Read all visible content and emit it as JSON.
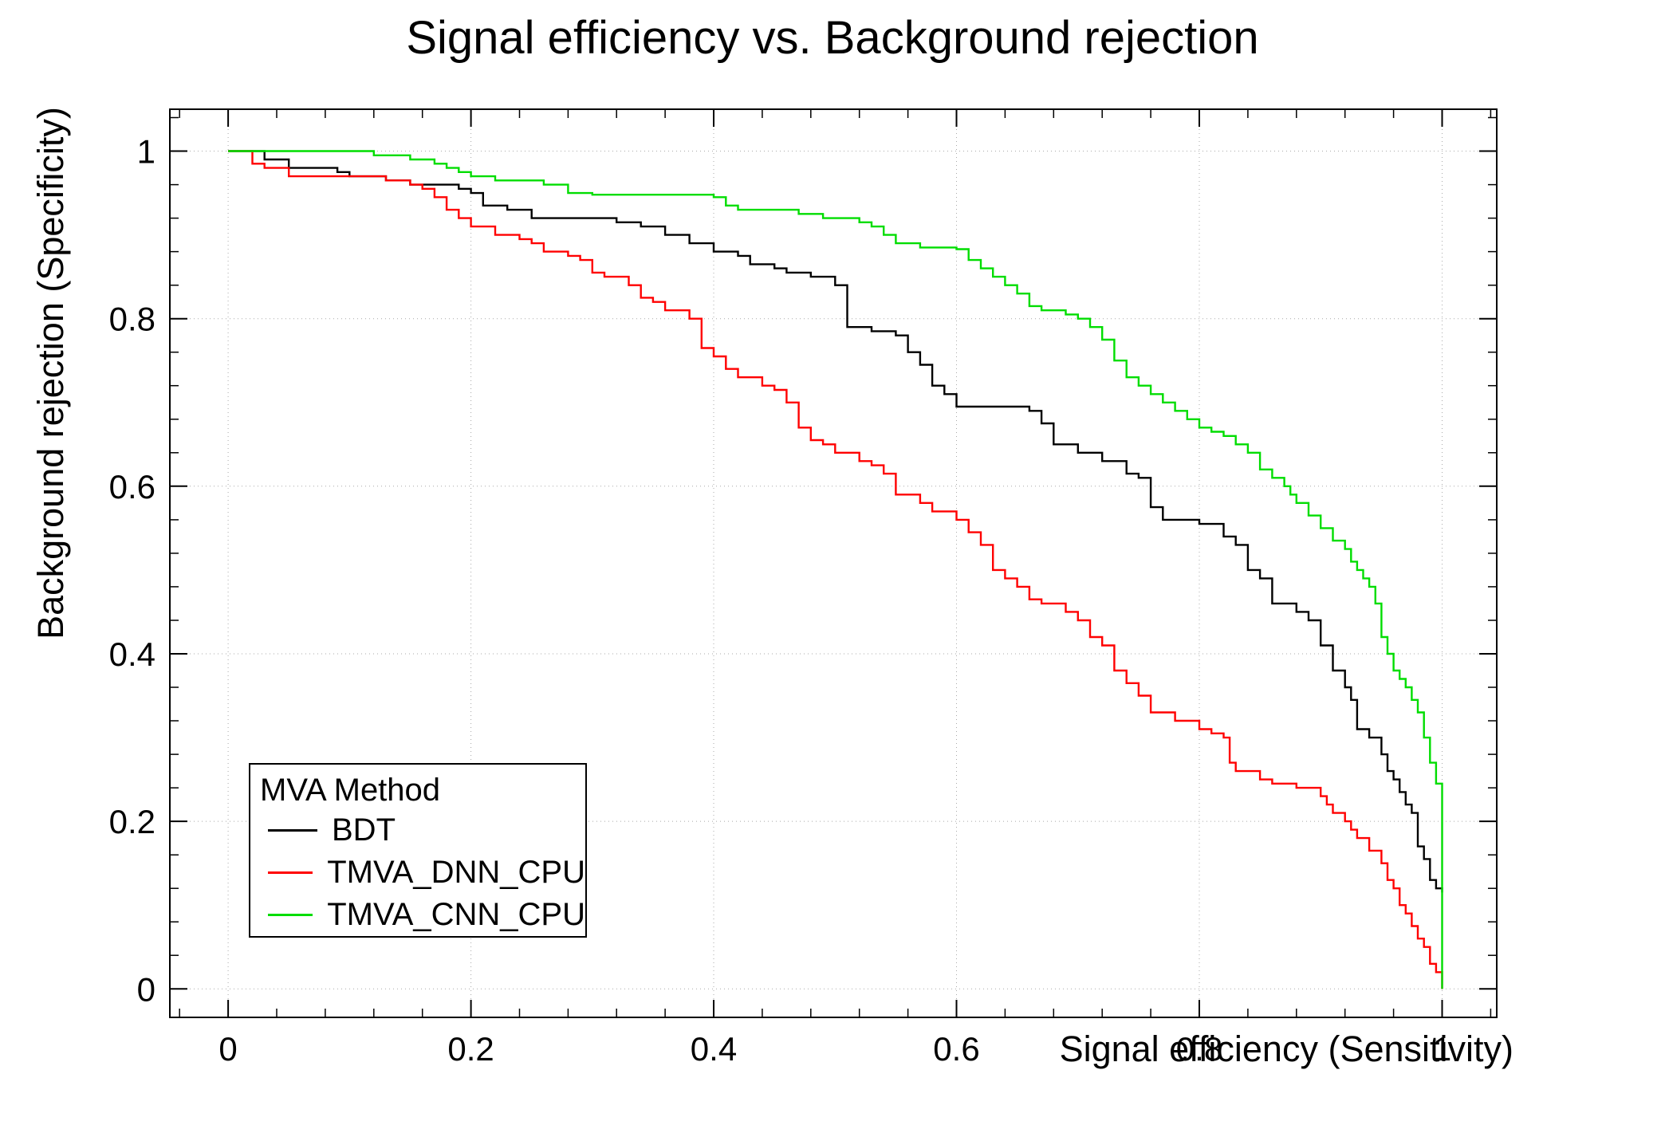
{
  "chart_data": {
    "type": "line",
    "title": "Signal efficiency vs. Background rejection",
    "xlabel": "Signal efficiency (Sensitivity)",
    "ylabel": "Background rejection (Specificity)",
    "xlim": [
      -0.048,
      1.045
    ],
    "ylim": [
      -0.034,
      1.05
    ],
    "xticks": [
      0,
      0.2,
      0.4,
      0.6,
      0.8,
      1
    ],
    "yticks": [
      0,
      0.2,
      0.4,
      0.6,
      0.8,
      1
    ],
    "minor_tick_step": 0.04,
    "grid": true,
    "legend": {
      "title": "MVA Method",
      "position": "bottom-left"
    },
    "series": [
      {
        "name": "BDT",
        "color": "#000000",
        "points": [
          [
            0,
            1
          ],
          [
            0.02,
            1
          ],
          [
            0.03,
            0.99
          ],
          [
            0.05,
            0.98
          ],
          [
            0.09,
            0.975
          ],
          [
            0.1,
            0.97
          ],
          [
            0.13,
            0.965
          ],
          [
            0.15,
            0.96
          ],
          [
            0.19,
            0.955
          ],
          [
            0.2,
            0.95
          ],
          [
            0.21,
            0.935
          ],
          [
            0.23,
            0.93
          ],
          [
            0.25,
            0.92
          ],
          [
            0.3,
            0.92
          ],
          [
            0.32,
            0.915
          ],
          [
            0.34,
            0.91
          ],
          [
            0.36,
            0.9
          ],
          [
            0.38,
            0.89
          ],
          [
            0.4,
            0.88
          ],
          [
            0.42,
            0.875
          ],
          [
            0.43,
            0.865
          ],
          [
            0.45,
            0.86
          ],
          [
            0.46,
            0.855
          ],
          [
            0.48,
            0.85
          ],
          [
            0.5,
            0.84
          ],
          [
            0.51,
            0.79
          ],
          [
            0.53,
            0.785
          ],
          [
            0.55,
            0.78
          ],
          [
            0.56,
            0.76
          ],
          [
            0.57,
            0.745
          ],
          [
            0.58,
            0.72
          ],
          [
            0.59,
            0.71
          ],
          [
            0.6,
            0.695
          ],
          [
            0.64,
            0.695
          ],
          [
            0.66,
            0.69
          ],
          [
            0.67,
            0.675
          ],
          [
            0.68,
            0.65
          ],
          [
            0.7,
            0.64
          ],
          [
            0.72,
            0.63
          ],
          [
            0.74,
            0.615
          ],
          [
            0.75,
            0.61
          ],
          [
            0.76,
            0.575
          ],
          [
            0.77,
            0.56
          ],
          [
            0.8,
            0.555
          ],
          [
            0.82,
            0.54
          ],
          [
            0.83,
            0.53
          ],
          [
            0.84,
            0.5
          ],
          [
            0.85,
            0.49
          ],
          [
            0.86,
            0.46
          ],
          [
            0.88,
            0.45
          ],
          [
            0.89,
            0.44
          ],
          [
            0.9,
            0.41
          ],
          [
            0.91,
            0.38
          ],
          [
            0.92,
            0.36
          ],
          [
            0.925,
            0.345
          ],
          [
            0.93,
            0.31
          ],
          [
            0.94,
            0.3
          ],
          [
            0.95,
            0.28
          ],
          [
            0.955,
            0.26
          ],
          [
            0.96,
            0.25
          ],
          [
            0.965,
            0.235
          ],
          [
            0.97,
            0.22
          ],
          [
            0.975,
            0.21
          ],
          [
            0.98,
            0.17
          ],
          [
            0.985,
            0.155
          ],
          [
            0.99,
            0.13
          ],
          [
            0.995,
            0.12
          ],
          [
            1,
            0.115
          ]
        ]
      },
      {
        "name": "TMVA_DNN_CPU",
        "color": "#ff0000",
        "points": [
          [
            0,
            1
          ],
          [
            0.01,
            1
          ],
          [
            0.02,
            0.985
          ],
          [
            0.03,
            0.98
          ],
          [
            0.05,
            0.97
          ],
          [
            0.13,
            0.965
          ],
          [
            0.15,
            0.96
          ],
          [
            0.16,
            0.955
          ],
          [
            0.17,
            0.945
          ],
          [
            0.18,
            0.93
          ],
          [
            0.19,
            0.92
          ],
          [
            0.2,
            0.91
          ],
          [
            0.22,
            0.9
          ],
          [
            0.24,
            0.895
          ],
          [
            0.25,
            0.89
          ],
          [
            0.26,
            0.88
          ],
          [
            0.28,
            0.875
          ],
          [
            0.29,
            0.87
          ],
          [
            0.3,
            0.855
          ],
          [
            0.31,
            0.85
          ],
          [
            0.33,
            0.84
          ],
          [
            0.34,
            0.825
          ],
          [
            0.35,
            0.82
          ],
          [
            0.36,
            0.81
          ],
          [
            0.38,
            0.8
          ],
          [
            0.39,
            0.765
          ],
          [
            0.4,
            0.755
          ],
          [
            0.41,
            0.74
          ],
          [
            0.42,
            0.73
          ],
          [
            0.44,
            0.72
          ],
          [
            0.45,
            0.715
          ],
          [
            0.46,
            0.7
          ],
          [
            0.47,
            0.67
          ],
          [
            0.48,
            0.655
          ],
          [
            0.49,
            0.65
          ],
          [
            0.5,
            0.64
          ],
          [
            0.52,
            0.63
          ],
          [
            0.53,
            0.625
          ],
          [
            0.54,
            0.615
          ],
          [
            0.55,
            0.59
          ],
          [
            0.57,
            0.58
          ],
          [
            0.58,
            0.57
          ],
          [
            0.6,
            0.56
          ],
          [
            0.61,
            0.545
          ],
          [
            0.62,
            0.53
          ],
          [
            0.63,
            0.5
          ],
          [
            0.64,
            0.49
          ],
          [
            0.65,
            0.48
          ],
          [
            0.66,
            0.465
          ],
          [
            0.67,
            0.46
          ],
          [
            0.69,
            0.45
          ],
          [
            0.7,
            0.44
          ],
          [
            0.71,
            0.42
          ],
          [
            0.72,
            0.41
          ],
          [
            0.73,
            0.38
          ],
          [
            0.74,
            0.365
          ],
          [
            0.75,
            0.35
          ],
          [
            0.76,
            0.33
          ],
          [
            0.78,
            0.32
          ],
          [
            0.8,
            0.31
          ],
          [
            0.81,
            0.305
          ],
          [
            0.82,
            0.3
          ],
          [
            0.825,
            0.27
          ],
          [
            0.83,
            0.26
          ],
          [
            0.85,
            0.25
          ],
          [
            0.86,
            0.245
          ],
          [
            0.88,
            0.24
          ],
          [
            0.9,
            0.23
          ],
          [
            0.905,
            0.22
          ],
          [
            0.91,
            0.21
          ],
          [
            0.92,
            0.2
          ],
          [
            0.925,
            0.19
          ],
          [
            0.93,
            0.18
          ],
          [
            0.94,
            0.165
          ],
          [
            0.95,
            0.15
          ],
          [
            0.955,
            0.13
          ],
          [
            0.96,
            0.12
          ],
          [
            0.965,
            0.1
          ],
          [
            0.97,
            0.09
          ],
          [
            0.975,
            0.075
          ],
          [
            0.98,
            0.06
          ],
          [
            0.985,
            0.05
          ],
          [
            0.99,
            0.03
          ],
          [
            0.995,
            0.02
          ],
          [
            1,
            0
          ]
        ]
      },
      {
        "name": "TMVA_CNN_CPU",
        "color": "#00dd00",
        "points": [
          [
            0,
            1
          ],
          [
            0.1,
            1
          ],
          [
            0.12,
            0.995
          ],
          [
            0.15,
            0.99
          ],
          [
            0.17,
            0.985
          ],
          [
            0.18,
            0.98
          ],
          [
            0.19,
            0.975
          ],
          [
            0.2,
            0.97
          ],
          [
            0.22,
            0.965
          ],
          [
            0.26,
            0.96
          ],
          [
            0.28,
            0.95
          ],
          [
            0.3,
            0.948
          ],
          [
            0.4,
            0.945
          ],
          [
            0.41,
            0.935
          ],
          [
            0.42,
            0.93
          ],
          [
            0.47,
            0.925
          ],
          [
            0.49,
            0.92
          ],
          [
            0.52,
            0.915
          ],
          [
            0.53,
            0.91
          ],
          [
            0.54,
            0.9
          ],
          [
            0.55,
            0.89
          ],
          [
            0.57,
            0.885
          ],
          [
            0.6,
            0.883
          ],
          [
            0.61,
            0.87
          ],
          [
            0.62,
            0.86
          ],
          [
            0.63,
            0.85
          ],
          [
            0.64,
            0.84
          ],
          [
            0.65,
            0.83
          ],
          [
            0.66,
            0.815
          ],
          [
            0.67,
            0.81
          ],
          [
            0.69,
            0.805
          ],
          [
            0.7,
            0.8
          ],
          [
            0.71,
            0.79
          ],
          [
            0.72,
            0.775
          ],
          [
            0.73,
            0.75
          ],
          [
            0.74,
            0.73
          ],
          [
            0.75,
            0.72
          ],
          [
            0.76,
            0.71
          ],
          [
            0.77,
            0.7
          ],
          [
            0.78,
            0.69
          ],
          [
            0.79,
            0.68
          ],
          [
            0.8,
            0.67
          ],
          [
            0.81,
            0.665
          ],
          [
            0.82,
            0.66
          ],
          [
            0.83,
            0.65
          ],
          [
            0.84,
            0.64
          ],
          [
            0.85,
            0.62
          ],
          [
            0.86,
            0.61
          ],
          [
            0.87,
            0.6
          ],
          [
            0.875,
            0.59
          ],
          [
            0.88,
            0.58
          ],
          [
            0.89,
            0.565
          ],
          [
            0.9,
            0.55
          ],
          [
            0.91,
            0.535
          ],
          [
            0.92,
            0.525
          ],
          [
            0.925,
            0.51
          ],
          [
            0.93,
            0.5
          ],
          [
            0.935,
            0.49
          ],
          [
            0.94,
            0.48
          ],
          [
            0.945,
            0.46
          ],
          [
            0.95,
            0.42
          ],
          [
            0.955,
            0.4
          ],
          [
            0.96,
            0.38
          ],
          [
            0.965,
            0.37
          ],
          [
            0.97,
            0.36
          ],
          [
            0.975,
            0.345
          ],
          [
            0.98,
            0.33
          ],
          [
            0.985,
            0.3
          ],
          [
            0.99,
            0.27
          ],
          [
            0.995,
            0.245
          ],
          [
            1,
            0.13
          ],
          [
            1,
            0
          ]
        ]
      }
    ]
  }
}
